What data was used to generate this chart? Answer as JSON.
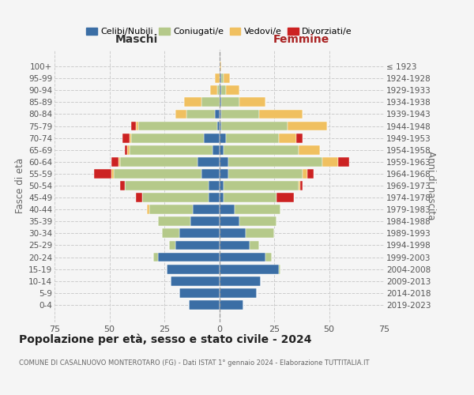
{
  "age_groups": [
    "0-4",
    "5-9",
    "10-14",
    "15-19",
    "20-24",
    "25-29",
    "30-34",
    "35-39",
    "40-44",
    "45-49",
    "50-54",
    "55-59",
    "60-64",
    "65-69",
    "70-74",
    "75-79",
    "80-84",
    "85-89",
    "90-94",
    "95-99",
    "100+"
  ],
  "birth_years": [
    "2019-2023",
    "2014-2018",
    "2009-2013",
    "2004-2008",
    "1999-2003",
    "1994-1998",
    "1989-1993",
    "1984-1988",
    "1979-1983",
    "1974-1978",
    "1969-1973",
    "1964-1968",
    "1959-1963",
    "1954-1958",
    "1949-1953",
    "1944-1948",
    "1939-1943",
    "1934-1938",
    "1929-1933",
    "1924-1928",
    "≤ 1923"
  ],
  "colors": {
    "celibi": "#3b6ea5",
    "coniugati": "#b5c98a",
    "vedovi": "#f0c060",
    "divorziati": "#cc2222"
  },
  "maschi": {
    "celibi": [
      14,
      18,
      22,
      24,
      28,
      20,
      18,
      13,
      12,
      5,
      5,
      8,
      10,
      3,
      7,
      1,
      2,
      0,
      0,
      0,
      0
    ],
    "coniugati": [
      0,
      0,
      0,
      0,
      2,
      3,
      8,
      15,
      20,
      30,
      38,
      40,
      35,
      38,
      33,
      36,
      13,
      8,
      1,
      0,
      0
    ],
    "vedovi": [
      0,
      0,
      0,
      0,
      0,
      0,
      0,
      0,
      1,
      0,
      0,
      1,
      1,
      1,
      1,
      1,
      5,
      8,
      3,
      2,
      0
    ],
    "divorziati": [
      0,
      0,
      0,
      0,
      0,
      0,
      0,
      0,
      0,
      3,
      2,
      8,
      3,
      1,
      3,
      2,
      0,
      0,
      0,
      0,
      0
    ]
  },
  "femmine": {
    "celibi": [
      11,
      17,
      19,
      27,
      21,
      14,
      12,
      9,
      7,
      2,
      2,
      4,
      4,
      2,
      3,
      1,
      1,
      1,
      1,
      1,
      0
    ],
    "coniugati": [
      0,
      0,
      0,
      1,
      3,
      4,
      13,
      17,
      21,
      24,
      34,
      34,
      43,
      34,
      24,
      30,
      17,
      8,
      2,
      1,
      0
    ],
    "vedovi": [
      0,
      0,
      0,
      0,
      0,
      0,
      0,
      0,
      0,
      0,
      1,
      2,
      7,
      10,
      8,
      18,
      20,
      12,
      6,
      3,
      1
    ],
    "divorziati": [
      0,
      0,
      0,
      0,
      0,
      0,
      0,
      0,
      0,
      8,
      1,
      3,
      5,
      0,
      3,
      0,
      0,
      0,
      0,
      0,
      0
    ]
  },
  "xlim": 75,
  "title": "Popolazione per età, sesso e stato civile - 2024",
  "subtitle": "COMUNE DI CASALNUOVO MONTEROTARO (FG) - Dati ISTAT 1° gennaio 2024 - Elaborazione TUTTITALIA.IT",
  "ylabel_left": "Fasce di età",
  "ylabel_right": "Anni di nascita",
  "header_maschi": "Maschi",
  "header_femmine": "Femmine",
  "legend_labels": [
    "Celibi/Nubili",
    "Coniugati/e",
    "Vedovi/e",
    "Divorziati/e"
  ],
  "bg_color": "#f5f5f5",
  "grid_color": "#cccccc"
}
